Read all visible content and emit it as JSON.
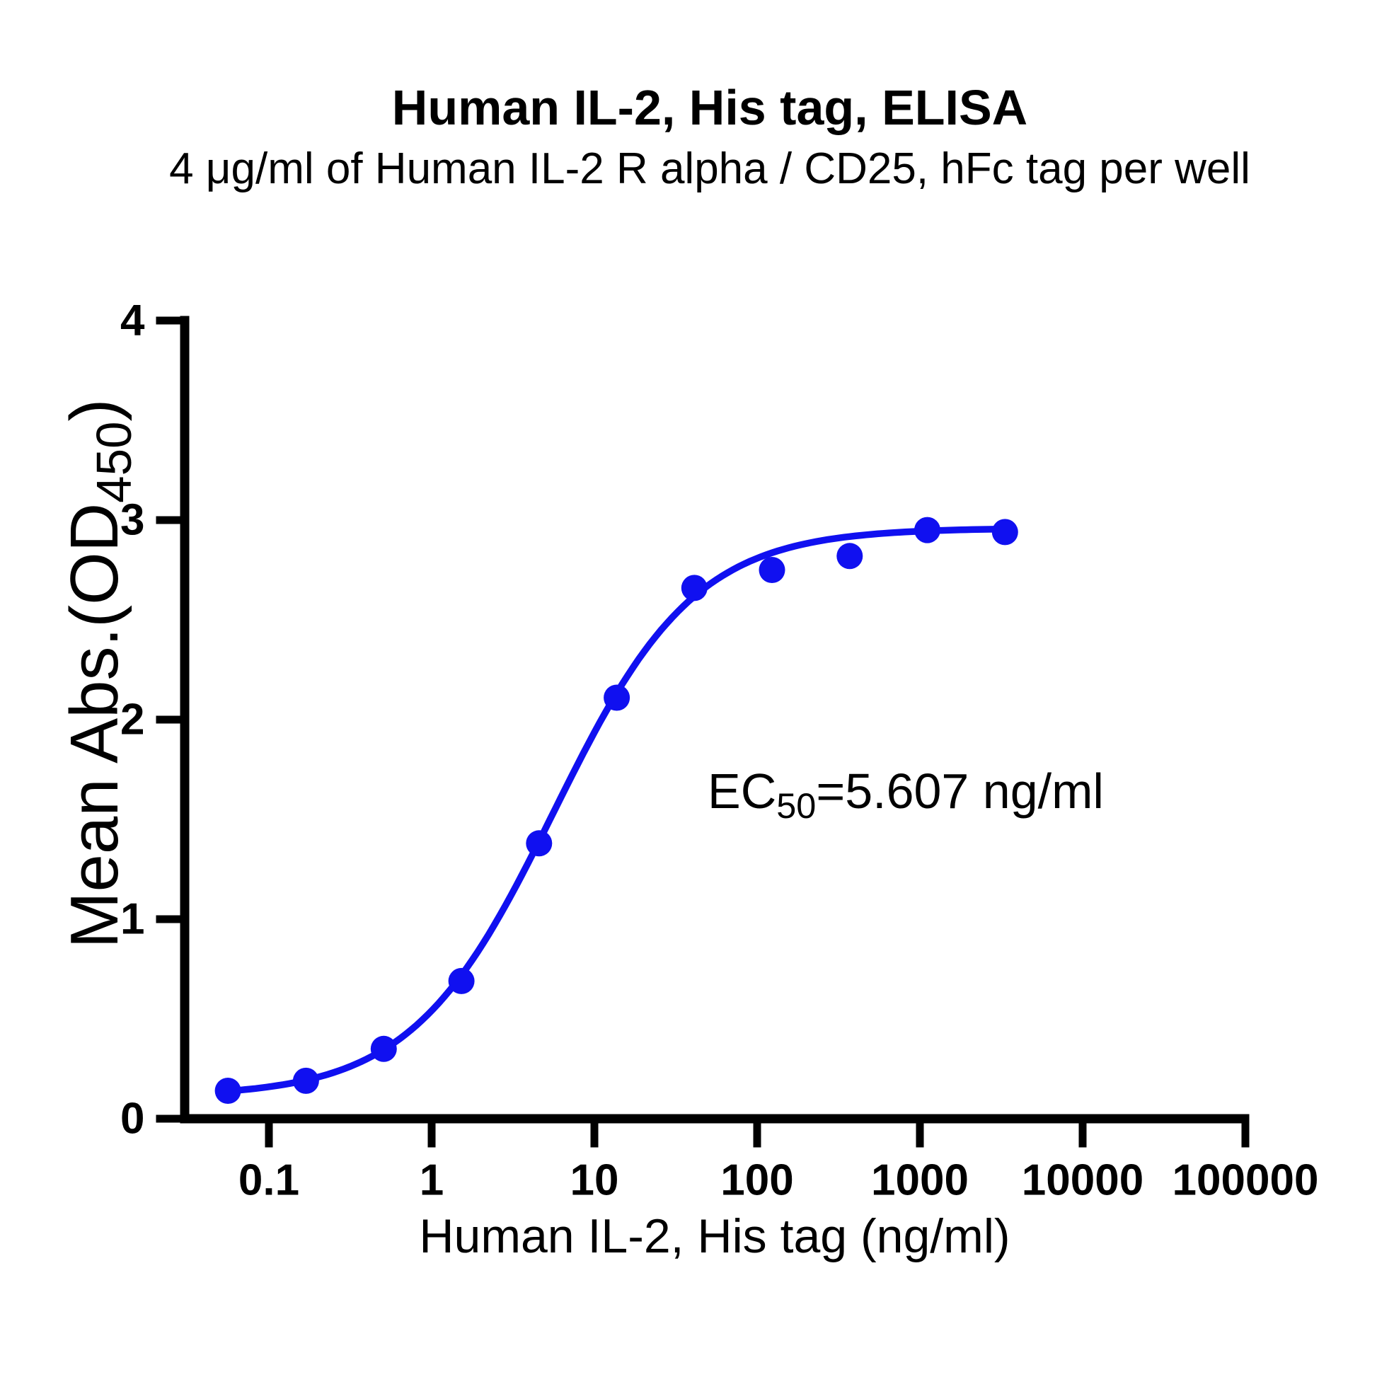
{
  "chart_data": {
    "type": "scatter",
    "title": "Human IL-2, His tag, ELISA",
    "subtitle": "4 μg/ml of Human IL-2 R alpha / CD25, hFc tag per well",
    "xlabel": "Human IL-2, His tag (ng/ml)",
    "ylabel": {
      "pre": "Mean Abs.(OD",
      "sub": "450",
      "post": ")"
    },
    "x_scale": "log10",
    "x_ticks": [
      "0.1",
      "1",
      "10",
      "100",
      "1000",
      "10000",
      "100000"
    ],
    "y_ticks": [
      "0",
      "1",
      "2",
      "3",
      "4"
    ],
    "ylim": [
      0,
      4
    ],
    "grid": false,
    "points": [
      {
        "x": 0.056,
        "y": 0.14
      },
      {
        "x": 0.169,
        "y": 0.19
      },
      {
        "x": 0.508,
        "y": 0.35
      },
      {
        "x": 1.524,
        "y": 0.69
      },
      {
        "x": 4.572,
        "y": 1.38
      },
      {
        "x": 13.717,
        "y": 2.11
      },
      {
        "x": 41.152,
        "y": 2.66
      },
      {
        "x": 123.457,
        "y": 2.75
      },
      {
        "x": 370.37,
        "y": 2.82
      },
      {
        "x": 1111.11,
        "y": 2.95
      },
      {
        "x": 3333.33,
        "y": 2.94
      }
    ],
    "annotation": {
      "pre": "EC",
      "sub": "50",
      "post": "=5.607 ng/ml"
    },
    "ec50_ng_ml": 5.607,
    "fit": {
      "model": "4PL",
      "bottom": 0.11,
      "top": 2.96,
      "ec50": 5.607,
      "hill": 1.0
    },
    "colors": {
      "series": "#1010F0",
      "axis": "#000000",
      "text": "#000000",
      "background": "#FFFFFF"
    }
  }
}
